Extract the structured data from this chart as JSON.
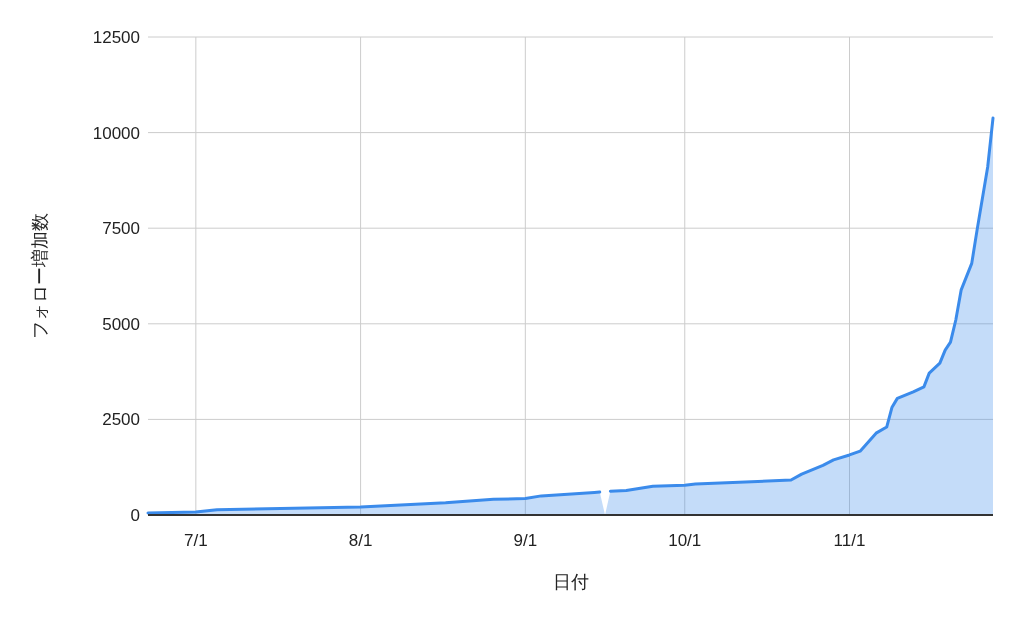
{
  "chart_data": {
    "type": "area",
    "xlabel": "日付",
    "ylabel": "フォロー増加数",
    "x": [
      "--06-22",
      "--07-01",
      "--07-05",
      "--08-01",
      "--08-17",
      "--08-26",
      "--09-01",
      "--09-04",
      "--09-14",
      "--09-15",
      "--09-16",
      "--09-17",
      "--09-20",
      "--09-25",
      "--10-01",
      "--10-03",
      "--10-21",
      "--10-23",
      "--10-27",
      "--10-29",
      "--11-01",
      "--11-03",
      "--11-06",
      "--11-08",
      "--11-09",
      "--11-10",
      "--11-13",
      "--11-15",
      "--11-16",
      "--11-18",
      "--11-19",
      "--11-20",
      "--11-21",
      "--11-22",
      "--11-24",
      "--11-25",
      "--11-27",
      "--11-28"
    ],
    "series": [
      {
        "color": "#3b8beb",
        "values": [
          50,
          80,
          140,
          210,
          320,
          410,
          430,
          500,
          590,
          600,
          null,
          620,
          640,
          750,
          780,
          810,
          915,
          1070,
          1300,
          1440,
          1570,
          1670,
          2140,
          2300,
          2820,
          3050,
          3220,
          3350,
          3710,
          3970,
          4310,
          4520,
          5100,
          5880,
          6580,
          7450,
          9100,
          10380
        ]
      }
    ],
    "xlim": [
      "--06-22",
      "--11-28"
    ],
    "xticks": [
      {
        "value": "--07-01",
        "label": "7/1"
      },
      {
        "value": "--08-01",
        "label": "8/1"
      },
      {
        "value": "--09-01",
        "label": "9/1"
      },
      {
        "value": "--10-01",
        "label": "10/1"
      },
      {
        "value": "--11-01",
        "label": "11/1"
      }
    ],
    "ylim": [
      0,
      12500
    ],
    "yticks": [
      0,
      2500,
      5000,
      7500,
      10000,
      12500
    ],
    "grid": true
  }
}
